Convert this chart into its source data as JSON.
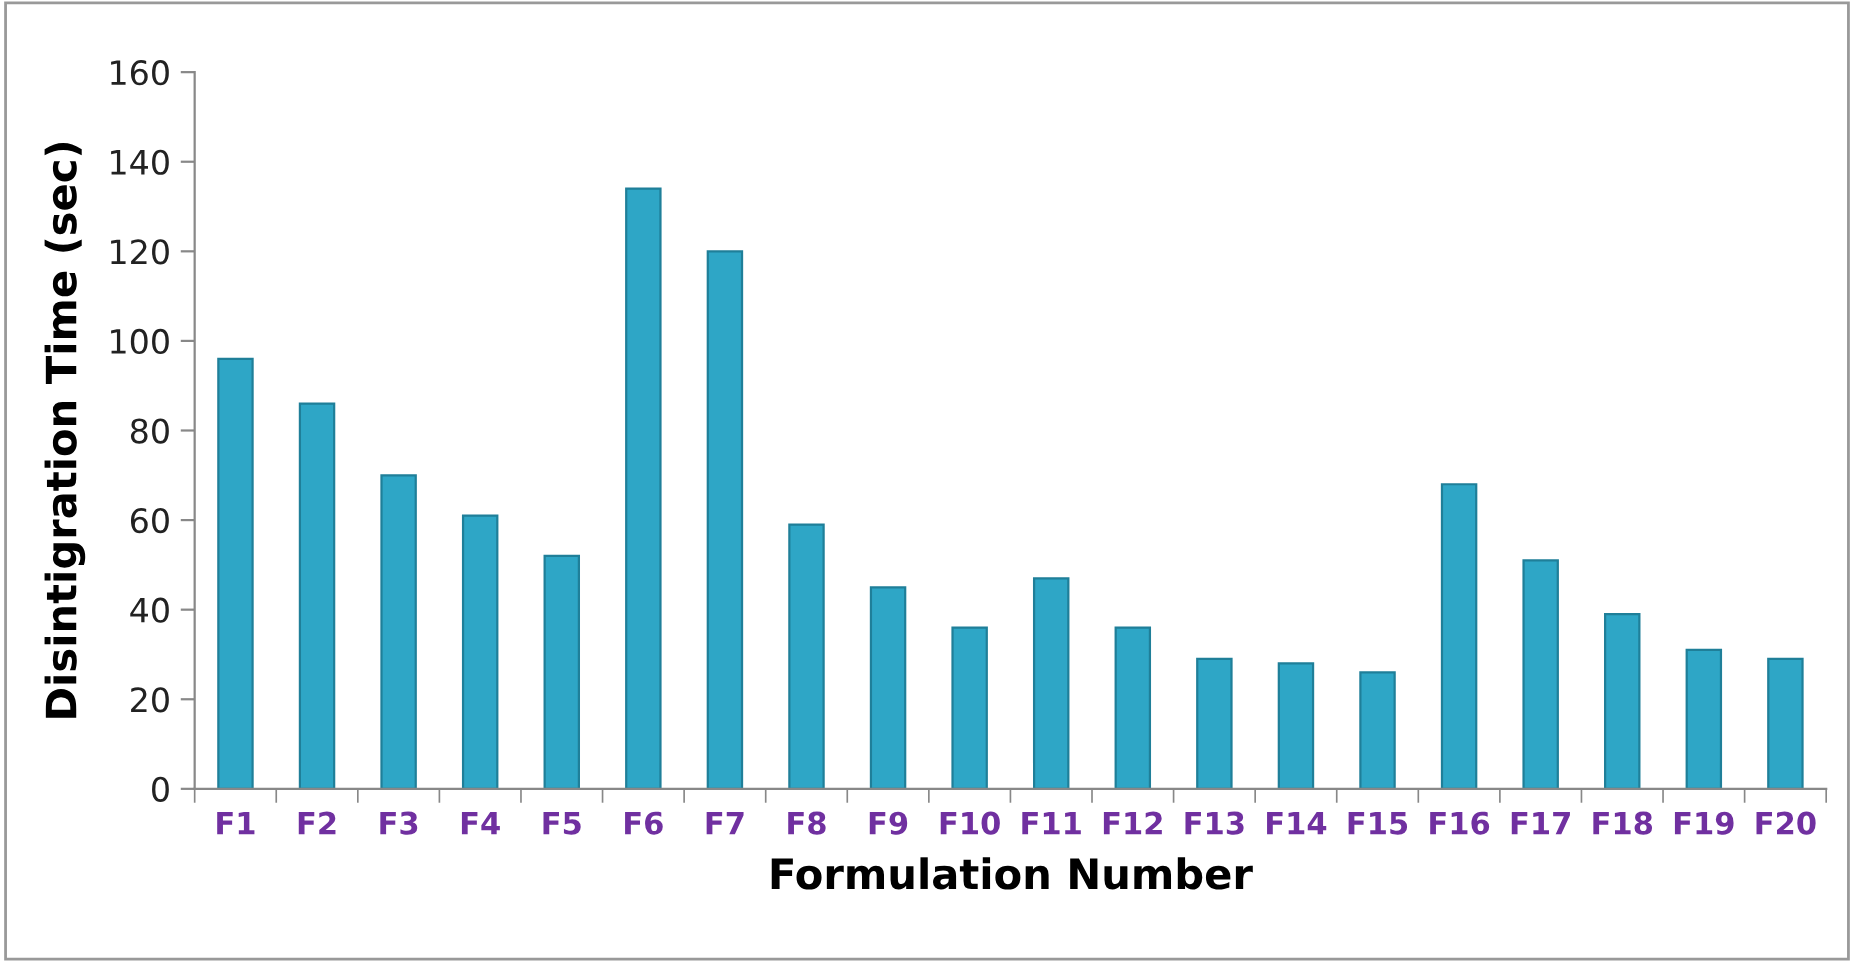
{
  "chart_data": {
    "type": "bar",
    "xlabel": "Formulation Number",
    "ylabel": "Disintigration Time (sec)",
    "categories": [
      "F1",
      "F2",
      "F3",
      "F4",
      "F5",
      "F6",
      "F7",
      "F8",
      "F9",
      "F10",
      "F11",
      "F12",
      "F13",
      "F14",
      "F15",
      "F16",
      "F17",
      "F18",
      "F19",
      "F20"
    ],
    "values": [
      96,
      86,
      70,
      61,
      52,
      134,
      120,
      59,
      45,
      36,
      47,
      36,
      29,
      28,
      26,
      68,
      51,
      39,
      31,
      29
    ],
    "color": "#2ea6c6",
    "ylim": [
      0,
      160
    ],
    "yticks": [
      0,
      20,
      40,
      60,
      80,
      100,
      120,
      140,
      160
    ],
    "grid": false
  }
}
